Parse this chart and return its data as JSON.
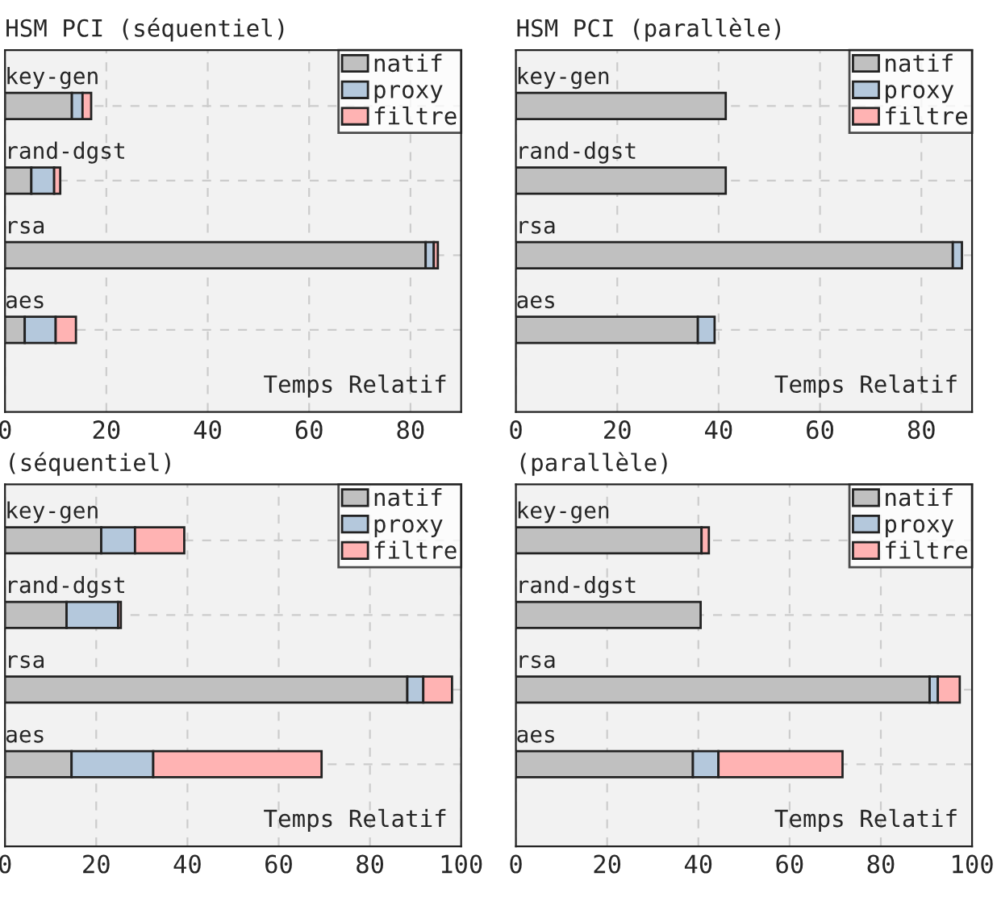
{
  "chart_data": [
    {
      "type": "bar",
      "orientation": "horizontal",
      "stacked": true,
      "title": "HSM PCI (séquentiel)",
      "xlabel": "Temps Relatif",
      "categories": [
        "key-gen",
        "rand-dgst",
        "rsa",
        "aes"
      ],
      "xlim": [
        0,
        90
      ],
      "xticks": [
        0,
        20,
        40,
        60,
        80
      ],
      "grid": true,
      "legend": "top right",
      "series": [
        {
          "name": "natif",
          "color": "#c0c0c0",
          "values": [
            13.2,
            5.2,
            83,
            3.9
          ]
        },
        {
          "name": "proxy",
          "color": "#b4c8dc",
          "values": [
            2.1,
            4.5,
            1.6,
            6.1
          ]
        },
        {
          "name": "filtre",
          "color": "#ffb3b3",
          "values": [
            1.7,
            1.2,
            0.8,
            4
          ]
        }
      ]
    },
    {
      "type": "bar",
      "orientation": "horizontal",
      "stacked": true,
      "title": "HSM PCI (parallèle)",
      "xlabel": "Temps Relatif",
      "categories": [
        "key-gen",
        "rand-dgst",
        "rsa",
        "aes"
      ],
      "xlim": [
        0,
        90
      ],
      "xticks": [
        0,
        20,
        40,
        60,
        80
      ],
      "grid": true,
      "legend": "top right",
      "series": [
        {
          "name": "natif",
          "color": "#c0c0c0",
          "values": [
            41.4,
            41.4,
            86.2,
            35.9
          ]
        },
        {
          "name": "proxy",
          "color": "#b4c8dc",
          "values": [
            0,
            0,
            1.8,
            3.3
          ]
        },
        {
          "name": "filtre",
          "color": "#ffb3b3",
          "values": [
            0,
            0,
            0,
            0
          ]
        }
      ]
    },
    {
      "type": "bar",
      "orientation": "horizontal",
      "stacked": true,
      "title": "(séquentiel)",
      "xlabel": "Temps Relatif",
      "categories": [
        "key-gen",
        "rand-dgst",
        "rsa",
        "aes"
      ],
      "xlim": [
        0,
        100
      ],
      "xticks": [
        0,
        20,
        40,
        60,
        80,
        100
      ],
      "grid": true,
      "legend": "top right",
      "series": [
        {
          "name": "natif",
          "color": "#c0c0c0",
          "values": [
            21.1,
            13.5,
            88.2,
            14.6
          ]
        },
        {
          "name": "proxy",
          "color": "#b4c8dc",
          "values": [
            7.4,
            11.3,
            3.5,
            17.9
          ]
        },
        {
          "name": "filtre",
          "color": "#ffb3b3",
          "values": [
            10.8,
            0.6,
            6.3,
            36.9
          ]
        }
      ]
    },
    {
      "type": "bar",
      "orientation": "horizontal",
      "stacked": true,
      "title": "(parallèle)",
      "xlabel": "Temps Relatif",
      "categories": [
        "key-gen",
        "rand-dgst",
        "rsa",
        "aes"
      ],
      "xlim": [
        0,
        100
      ],
      "xticks": [
        0,
        20,
        40,
        60,
        80,
        100
      ],
      "grid": true,
      "legend": "top right",
      "series": [
        {
          "name": "natif",
          "color": "#c0c0c0",
          "values": [
            40.7,
            40.5,
            90.7,
            38.8
          ]
        },
        {
          "name": "proxy",
          "color": "#b4c8dc",
          "values": [
            0,
            0,
            1.8,
            5.6
          ]
        },
        {
          "name": "filtre",
          "color": "#ffb3b3",
          "values": [
            1.6,
            0,
            4.8,
            27.2
          ]
        }
      ]
    }
  ]
}
